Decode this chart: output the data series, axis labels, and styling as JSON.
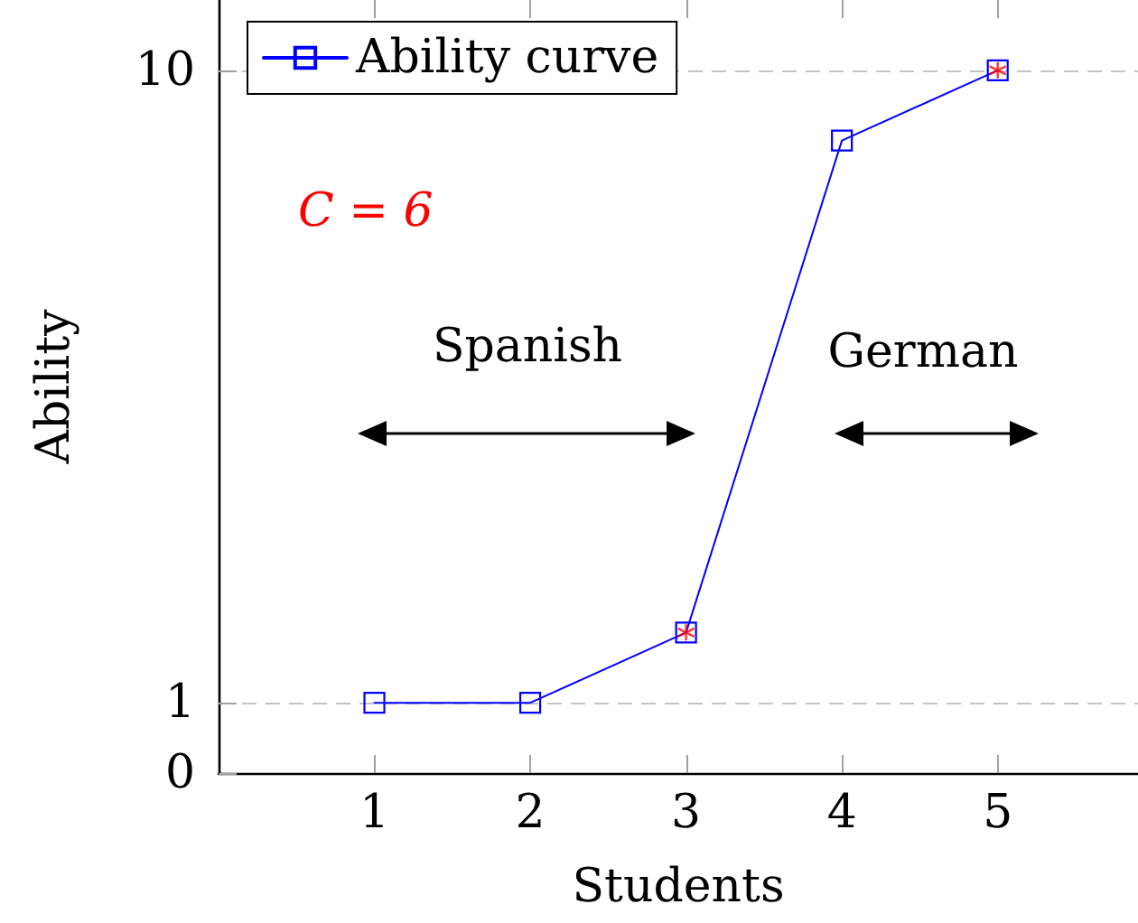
{
  "chart_data": {
    "type": "line",
    "xlabel": "Students",
    "ylabel": "Ability",
    "xlim": [
      0,
      5.9
    ],
    "xticks": [
      1,
      2,
      3,
      4,
      5
    ],
    "ylim": [
      0,
      11
    ],
    "yticks": [
      0,
      1,
      10
    ],
    "grid": "y",
    "legend": "top left",
    "series": [
      {
        "name": "Ability curve",
        "color": "#0000ff",
        "x": [
          1,
          2,
          3,
          4,
          5
        ],
        "values": [
          1,
          1,
          2,
          9,
          10
        ],
        "marker": "square",
        "line_style": "solid"
      },
      {
        "type": "scatter",
        "color": "#ff0000",
        "x": [
          3,
          5
        ],
        "values": [
          2,
          10
        ],
        "marker": "cross"
      }
    ],
    "annotations": [
      "C = 6",
      "Spanish",
      "German"
    ]
  }
}
